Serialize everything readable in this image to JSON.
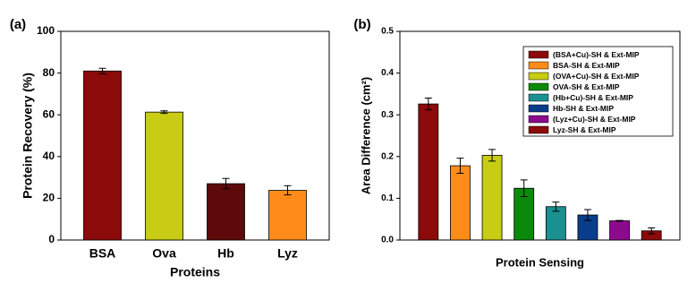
{
  "chart_data": [
    {
      "type": "bar",
      "panel_label": "(a)",
      "x_label": "Proteins",
      "y_label": "Protein Recovery (%)",
      "categories": [
        "BSA",
        "Ova",
        "Hb",
        "Lyz"
      ],
      "values": [
        81,
        61.3,
        27,
        23.8
      ],
      "errors": [
        1.3,
        0.6,
        2.5,
        2.2
      ],
      "colors": [
        "#8b0a0a",
        "#c8cc14",
        "#5e0a0a",
        "#ff8c1a"
      ],
      "ylim": [
        0,
        100
      ],
      "yticks": [
        0,
        20,
        40,
        60,
        80,
        100
      ]
    },
    {
      "type": "bar",
      "panel_label": "(b)",
      "x_label": "Protein Sensing",
      "y_label": "Area Difference (cm²)",
      "series": [
        {
          "name": "(BSA+Cu)-SH & Ext-MIP",
          "color": "#8b0a0a",
          "values": [
            0.326
          ],
          "errors": [
            0.014
          ]
        },
        {
          "name": "BSA-SH & Ext-MIP",
          "color": "#ff8c1a",
          "values": [
            0.178
          ],
          "errors": [
            0.018
          ]
        },
        {
          "name": "(OVA+Cu)-SH & Ext-MIP",
          "color": "#c8cc14",
          "values": [
            0.203
          ],
          "errors": [
            0.014
          ]
        },
        {
          "name": "OVA-SH & Ext-MIP",
          "color": "#0a8a0a",
          "values": [
            0.124
          ],
          "errors": [
            0.02
          ]
        },
        {
          "name": "(Hb+Cu)-SH & Ext-MIP",
          "color": "#1a9090",
          "values": [
            0.08
          ],
          "errors": [
            0.011
          ]
        },
        {
          "name": "Hb-SH & Ext-MIP",
          "color": "#0a3c8c",
          "values": [
            0.06
          ],
          "errors": [
            0.013
          ]
        },
        {
          "name": "(Lyz+Cu)-SH & Ext-MIP",
          "color": "#8c0a8c",
          "values": [
            0.046
          ],
          "errors": [
            0.001
          ]
        },
        {
          "name": "Lyz-SH & Ext-MIP",
          "color": "#8b0a0a",
          "values": [
            0.022
          ],
          "errors": [
            0.007
          ]
        }
      ],
      "ylim": [
        0,
        0.5
      ],
      "yticks": [
        {
          "value": 0,
          "label": "0.0"
        },
        0.1,
        0.2,
        0.3,
        0.4,
        0.5
      ],
      "legend": "upper right"
    }
  ]
}
